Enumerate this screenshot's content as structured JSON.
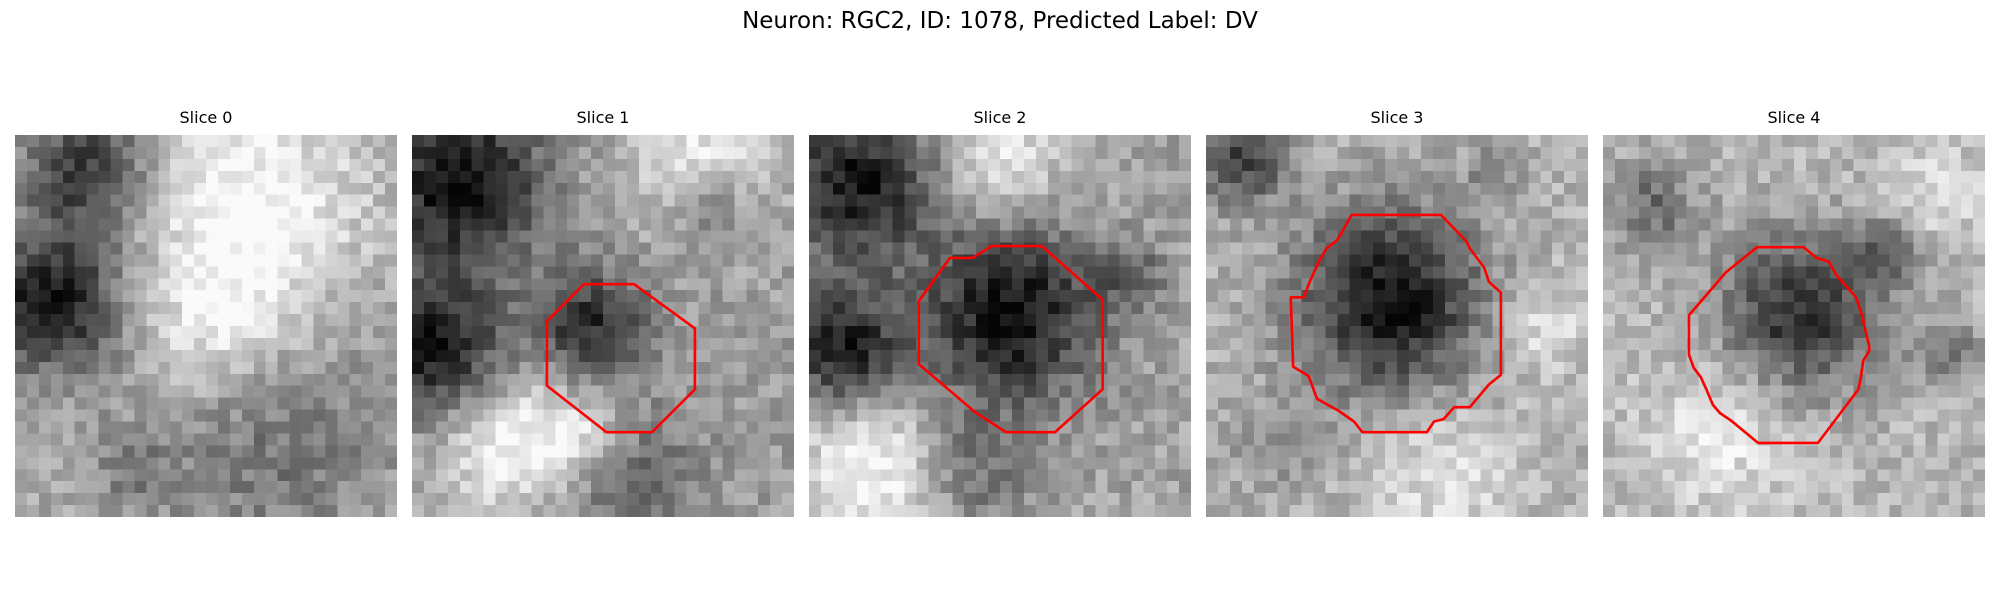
{
  "figure": {
    "title": "Neuron: RGC2, ID: 1078, Predicted Label: DV"
  },
  "slices": [
    {
      "title": "Slice 0",
      "has_outline": false
    },
    {
      "title": "Slice 1",
      "has_outline": true
    },
    {
      "title": "Slice 2",
      "has_outline": true
    },
    {
      "title": "Slice 3",
      "has_outline": true
    },
    {
      "title": "Slice 4",
      "has_outline": true
    }
  ],
  "colors": {
    "outline": "#ff0000",
    "colormap": "grayscale"
  }
}
